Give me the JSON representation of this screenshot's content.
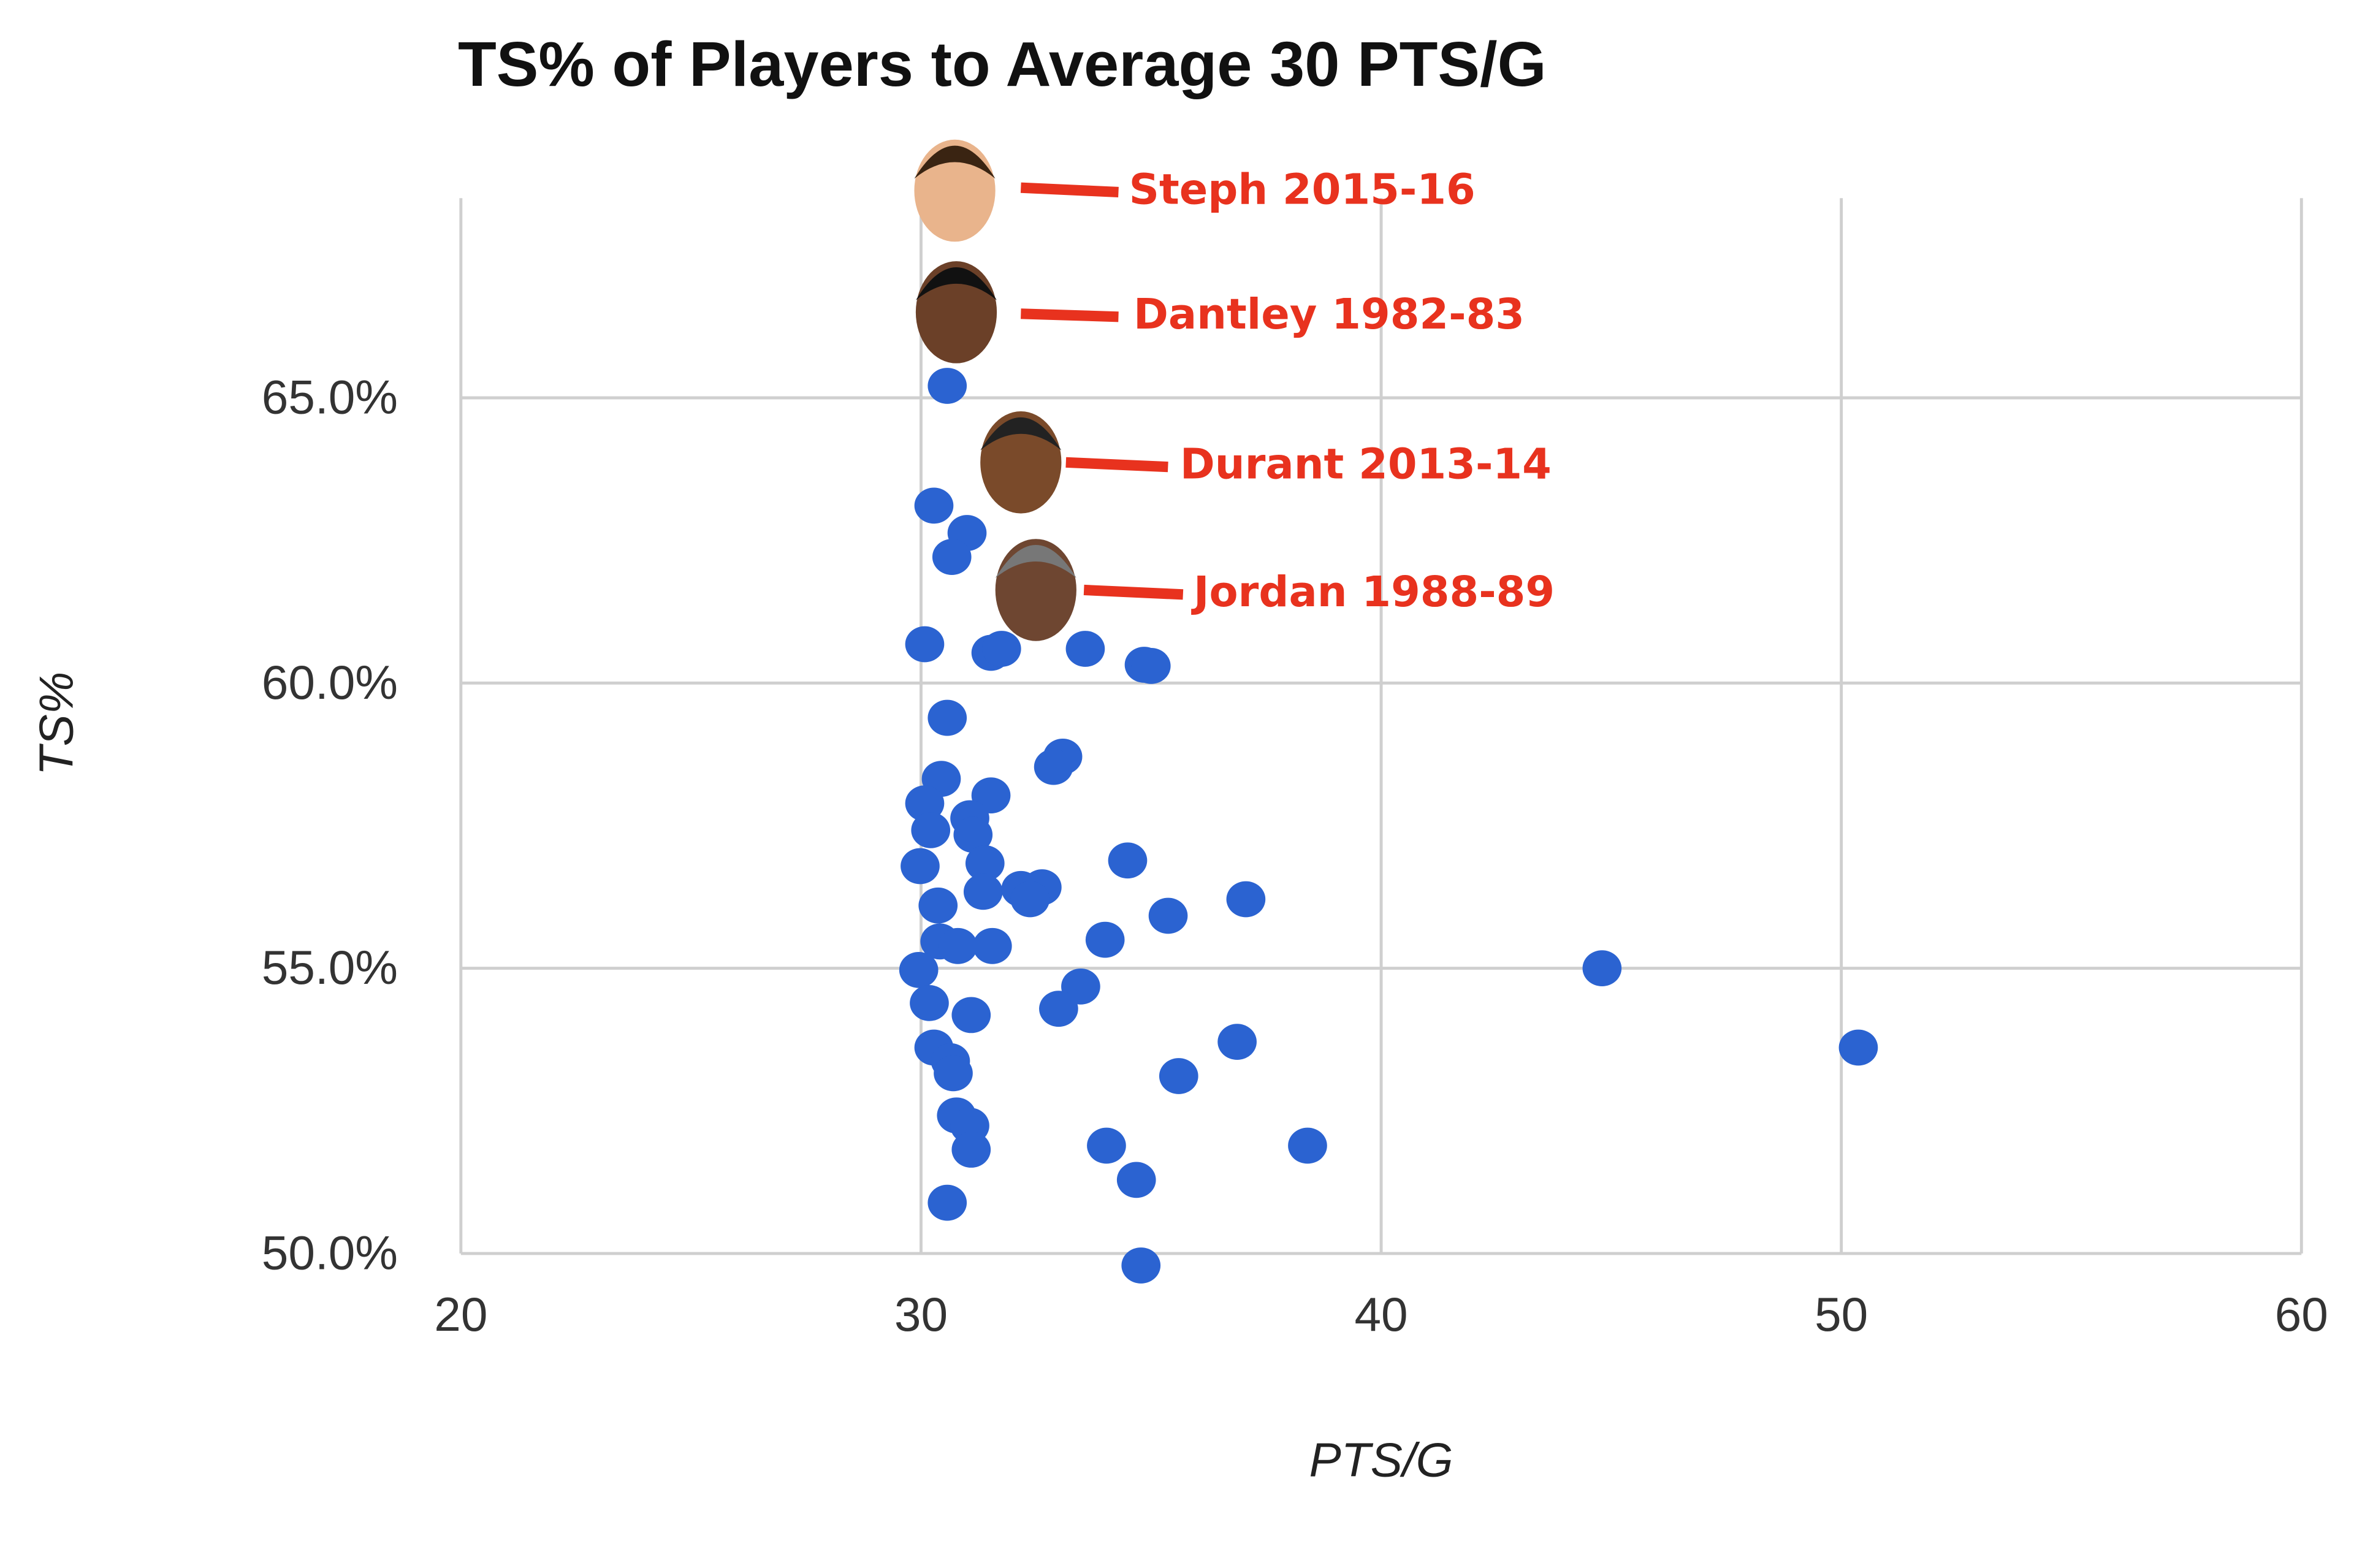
{
  "chart_data": {
    "type": "scatter",
    "title": "TS% of Players to Average 30 PTS/G",
    "x_label": "PTS/G",
    "y_label": "TS%",
    "xlim": [
      20,
      60
    ],
    "xticks": [
      20,
      30,
      40,
      50,
      60
    ],
    "ylim": [
      50,
      68.5
    ],
    "yticks": [
      {
        "value": 50,
        "label": "50.0%"
      },
      {
        "value": 55,
        "label": "55.0%"
      },
      {
        "value": 60,
        "label": "60.0%"
      },
      {
        "value": 65,
        "label": "65.0%"
      }
    ],
    "grid": true,
    "series": [
      {
        "color": "#2b63d1",
        "x": [
          30.57,
          30.28,
          31.0,
          30.67,
          30.08,
          31.52,
          31.75,
          33.57,
          34.85,
          35.0,
          30.57,
          33.08,
          32.88,
          30.44,
          30.08,
          31.52,
          31.06,
          30.21,
          31.13,
          31.39,
          29.98,
          34.49,
          31.35,
          32.17,
          32.63,
          32.37,
          37.06,
          30.37,
          35.37,
          34.0,
          30.41,
          30.8,
          31.55,
          29.95,
          44.8,
          30.18,
          31.09,
          33.47,
          32.99,
          36.87,
          30.28,
          30.64,
          30.7,
          50.37,
          35.6,
          30.77,
          31.06,
          31.09,
          34.03,
          38.4,
          34.68,
          30.57,
          34.78
        ],
        "values": [
          65.21,
          63.11,
          62.63,
          62.21,
          60.68,
          60.53,
          60.6,
          60.6,
          60.32,
          60.3,
          59.39,
          58.71,
          58.53,
          58.32,
          57.89,
          58.03,
          57.63,
          57.42,
          57.34,
          56.84,
          56.79,
          56.89,
          56.34,
          56.39,
          56.42,
          56.21,
          56.21,
          56.1,
          55.92,
          55.5,
          55.47,
          55.39,
          55.39,
          54.97,
          55.0,
          54.39,
          54.18,
          54.68,
          54.29,
          53.71,
          53.61,
          53.37,
          53.16,
          53.61,
          53.11,
          52.42,
          52.24,
          51.82,
          51.89,
          51.89,
          51.29,
          50.89,
          49.79
        ]
      }
    ],
    "annotations": [
      {
        "text": "Steph 2015-16"
      },
      {
        "text": "Dantley 1982-83"
      },
      {
        "text": "Durant 2013-14"
      },
      {
        "text": "Jordan 1988-89"
      }
    ]
  }
}
